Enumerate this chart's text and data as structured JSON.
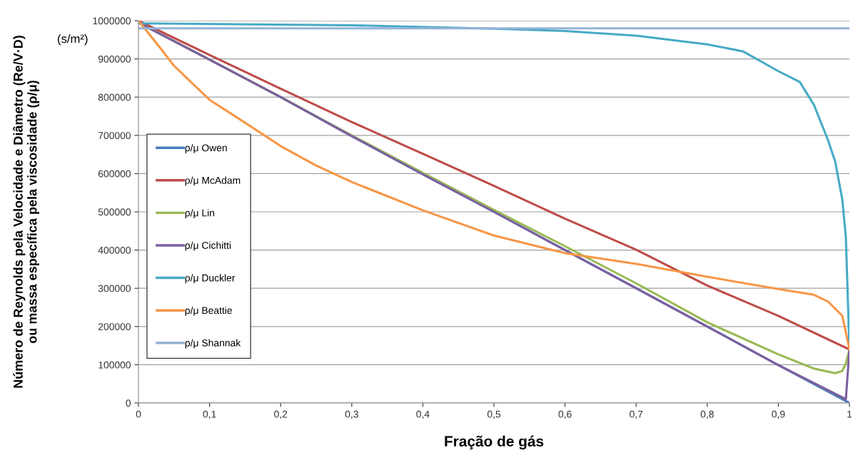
{
  "chart_data": {
    "type": "line",
    "ylabel": "Número de Reynolds pela Velocidade e Diâmetro (Re/V·D)\nou massa específica pela viscosidade (ρ/μ)",
    "xlabel": "Fração de gás",
    "annotations": [
      "(s/m²)"
    ],
    "xlim": [
      0,
      1
    ],
    "ylim": [
      0,
      1000000
    ],
    "xticks": [
      0,
      {
        "value": 0.1,
        "label": "0,1"
      },
      {
        "value": 0.2,
        "label": "0,2"
      },
      {
        "value": 0.3,
        "label": "0,3"
      },
      {
        "value": 0.4,
        "label": "0,4"
      },
      {
        "value": 0.5,
        "label": "0,5"
      },
      {
        "value": 0.6,
        "label": "0,6"
      },
      {
        "value": 0.7,
        "label": "0,7"
      },
      {
        "value": 0.8,
        "label": "0,8"
      },
      {
        "value": 0.9,
        "label": "0,9"
      },
      1
    ],
    "yticks": [
      0,
      100000,
      200000,
      300000,
      400000,
      500000,
      600000,
      700000,
      800000,
      900000,
      1000000
    ],
    "grid": "y",
    "legend": "left",
    "marker": "none",
    "line_style": "solid",
    "series": [
      {
        "name": "ρ/μ Owen",
        "color": "#4a7ebb",
        "x": [
          0,
          0.1,
          0.2,
          0.3,
          0.4,
          0.5,
          0.6,
          0.7,
          0.8,
          0.9,
          1
        ],
        "values": [
          995000,
          898000,
          800000,
          698000,
          598000,
          500000,
          400000,
          300000,
          200000,
          99000,
          0
        ]
      },
      {
        "name": "ρ/μ McAdam",
        "color": "#be4b48",
        "x": [
          0,
          0.1,
          0.2,
          0.3,
          0.4,
          0.5,
          0.6,
          0.7,
          0.8,
          0.9,
          1
        ],
        "values": [
          1000000,
          910000,
          822000,
          735000,
          652000,
          568000,
          482000,
          401000,
          307000,
          228000,
          140000
        ]
      },
      {
        "name": "ρ/μ Lin",
        "color": "#98b954",
        "x": [
          0,
          0.1,
          0.2,
          0.3,
          0.4,
          0.5,
          0.6,
          0.7,
          0.8,
          0.9,
          0.95,
          0.98,
          0.99,
          0.995,
          1
        ],
        "values": [
          995000,
          898000,
          800000,
          700000,
          602000,
          505000,
          410000,
          313000,
          211000,
          127000,
          90000,
          78000,
          84000,
          103000,
          140000
        ]
      },
      {
        "name": "ρ/μ Cichitti",
        "color": "#7d60a0",
        "x": [
          0,
          0.1,
          0.2,
          0.3,
          0.4,
          0.5,
          0.6,
          0.7,
          0.8,
          0.9,
          0.995,
          1
        ],
        "values": [
          995000,
          898000,
          800000,
          698000,
          598000,
          500000,
          400000,
          300000,
          200000,
          99000,
          10000,
          140000
        ]
      },
      {
        "name": "ρ/μ Duckler",
        "color": "#46aac5",
        "x": [
          0,
          0.3,
          0.5,
          0.6,
          0.7,
          0.8,
          0.85,
          0.9,
          0.93,
          0.95,
          0.97,
          0.98,
          0.99,
          0.995,
          1
        ],
        "values": [
          993000,
          988000,
          979000,
          973000,
          961000,
          938000,
          920000,
          868000,
          840000,
          780000,
          687000,
          631000,
          532000,
          433000,
          140000
        ]
      },
      {
        "name": "ρ/μ Beattie",
        "color": "#f79646",
        "x": [
          0,
          0.03,
          0.05,
          0.1,
          0.15,
          0.2,
          0.25,
          0.3,
          0.4,
          0.5,
          0.6,
          0.7,
          0.8,
          0.9,
          0.95,
          0.97,
          0.99,
          1
        ],
        "values": [
          1000000,
          930000,
          882000,
          793000,
          733000,
          672000,
          621000,
          578000,
          504000,
          438000,
          392000,
          364000,
          330000,
          298000,
          283000,
          265000,
          228000,
          140000
        ]
      },
      {
        "name": "ρ/μ Shannak",
        "color": "#95b3d7",
        "x": [
          0,
          1
        ],
        "values": [
          980000,
          980000
        ]
      }
    ]
  }
}
